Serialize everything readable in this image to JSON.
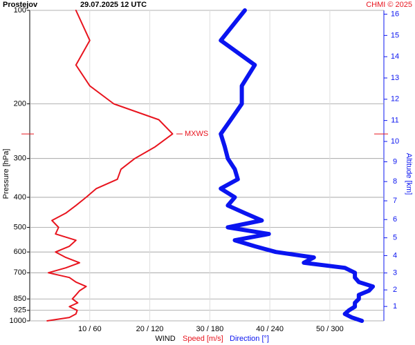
{
  "chart_data": {
    "type": "line",
    "title": "Prostejov",
    "subtitle": "29.07.2025 12 UTC",
    "credit": "CHMI © 2025",
    "ylabel": "Pressure [hPa]",
    "y2label": "Altitude [km]",
    "xlabel": "WIND",
    "y": [
      1000,
      975,
      950,
      925,
      900,
      875,
      850,
      825,
      800,
      775,
      750,
      725,
      700,
      675,
      650,
      625,
      600,
      575,
      550,
      525,
      500,
      475,
      450,
      425,
      400,
      375,
      350,
      325,
      300,
      275,
      250,
      225,
      200,
      175,
      150,
      125,
      100
    ],
    "ylim": [
      1000,
      100
    ],
    "ylog": true,
    "yticks": [
      100,
      200,
      300,
      400,
      500,
      600,
      700,
      850,
      925,
      1000
    ],
    "y2ticks": [
      1,
      2,
      3,
      4,
      5,
      6,
      7,
      8,
      9,
      10,
      11,
      12,
      13,
      14,
      15,
      16
    ],
    "xlim": [
      0,
      59
    ],
    "xticks": [
      {
        "value": 10,
        "label": "10 / 60"
      },
      {
        "value": 20,
        "label": "20 / 120"
      },
      {
        "value": 30,
        "label": "30 / 180"
      },
      {
        "value": 40,
        "label": "40 / 240"
      },
      {
        "value": 50,
        "label": "50 / 300"
      }
    ],
    "x2lim": [
      0,
      354
    ],
    "grid": true,
    "series": [
      {
        "name": "Speed [m/s]",
        "color": "#e8141e",
        "values": [
          2.9,
          6.6,
          7.7,
          7.9,
          6.6,
          8.0,
          7.1,
          7.7,
          8.3,
          9.4,
          7.7,
          6.6,
          3.1,
          6.0,
          8.3,
          6.0,
          4.3,
          6.6,
          7.7,
          4.3,
          4.8,
          3.7,
          6.0,
          7.7,
          9.4,
          11.1,
          14.6,
          15.2,
          17.5,
          20.9,
          23.8,
          21.5,
          14.0,
          10.0,
          7.7,
          10.0,
          7.7
        ]
      },
      {
        "name": "Direction [°]",
        "color": "#0a14f0",
        "axis": "x2",
        "values": [
          332,
          322,
          315,
          319,
          325,
          325,
          329,
          329,
          339,
          343,
          329,
          325,
          325,
          315,
          274,
          284,
          246,
          225,
          205,
          239,
          198,
          232,
          215,
          198,
          205,
          191,
          208,
          205,
          198,
          195,
          191,
          201,
          212,
          212,
          225,
          191,
          215
        ]
      }
    ],
    "annotation": {
      "text": "MXWS",
      "y": 250
    }
  }
}
